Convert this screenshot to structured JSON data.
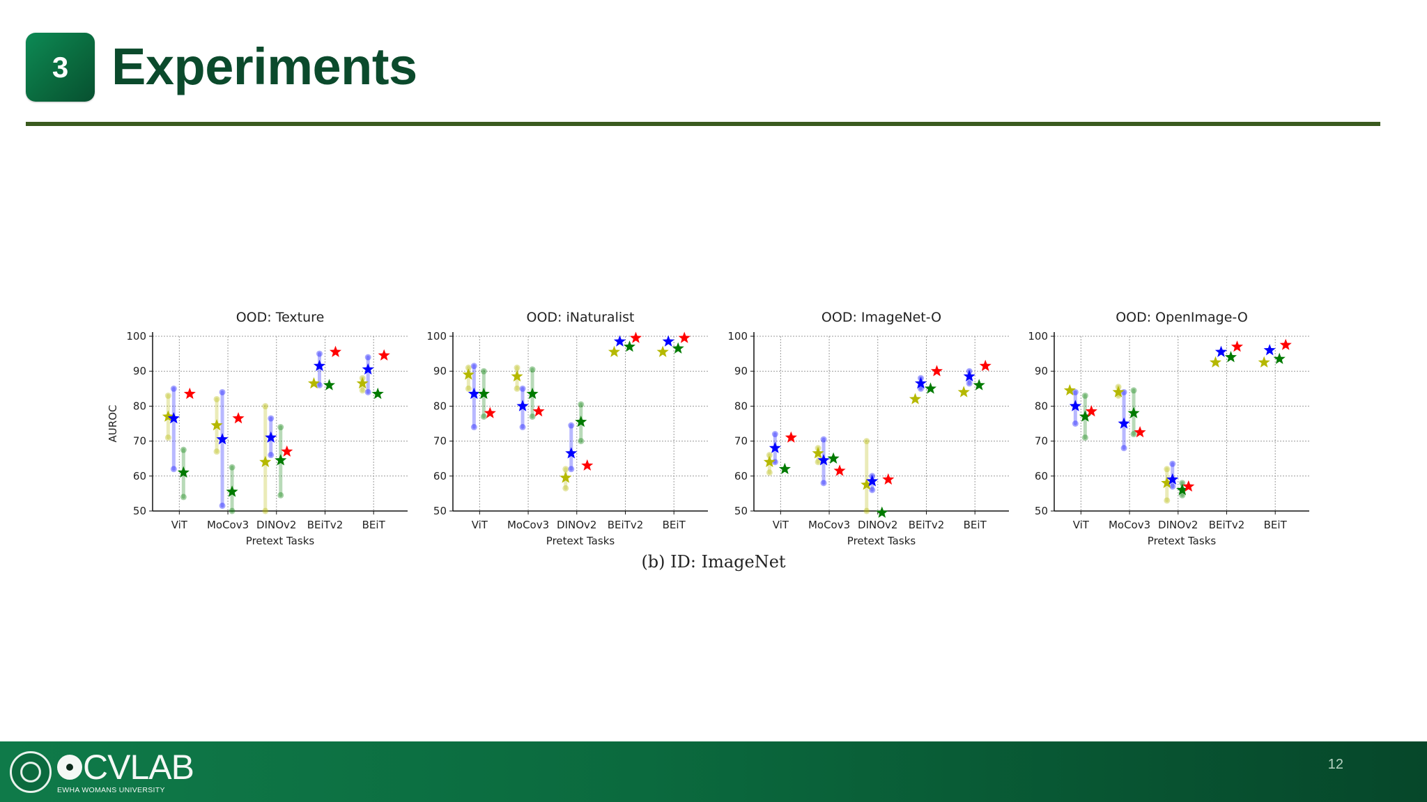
{
  "slide": {
    "section_number": "3",
    "title": "Experiments",
    "page_number": "12",
    "caption": "(b) ID: ImageNet",
    "logo_text": "CVLAB",
    "logo_subtext": "EWHA WOMANS UNIVERSITY"
  },
  "colors": {
    "title": "#0b4a2c",
    "rule": "#3a5a1e",
    "footer": "#0b6a3e",
    "series": [
      "#0000ff",
      "#b5b800",
      "#007a00",
      "#ff0000"
    ]
  },
  "chart_data": [
    {
      "type": "scatter",
      "title": "OOD: Texture",
      "xlabel": "Pretext Tasks",
      "ylabel": "AUROC",
      "categories": [
        "ViT",
        "MoCov3",
        "DINOv2",
        "BEiTv2",
        "BEiT"
      ],
      "ylim": [
        50,
        100
      ],
      "yticks": [
        50,
        60,
        70,
        80,
        90,
        100
      ],
      "grid": true,
      "stars": [
        {
          "cat": 0,
          "pos": 0,
          "y": 77,
          "color": "#b5b800"
        },
        {
          "cat": 0,
          "pos": 1,
          "y": 76.5,
          "color": "#0000ff"
        },
        {
          "cat": 0,
          "pos": 2,
          "y": 61,
          "color": "#007a00"
        },
        {
          "cat": 0,
          "pos": 3,
          "y": 83.5,
          "color": "#ff0000"
        },
        {
          "cat": 1,
          "pos": 0,
          "y": 74.5,
          "color": "#b5b800"
        },
        {
          "cat": 1,
          "pos": 1,
          "y": 70.5,
          "color": "#0000ff"
        },
        {
          "cat": 1,
          "pos": 2,
          "y": 55.5,
          "color": "#007a00"
        },
        {
          "cat": 1,
          "pos": 3,
          "y": 76.5,
          "color": "#ff0000"
        },
        {
          "cat": 2,
          "pos": 0,
          "y": 64,
          "color": "#b5b800"
        },
        {
          "cat": 2,
          "pos": 1,
          "y": 71,
          "color": "#0000ff"
        },
        {
          "cat": 2,
          "pos": 2,
          "y": 64.5,
          "color": "#007a00"
        },
        {
          "cat": 2,
          "pos": 3,
          "y": 67,
          "color": "#ff0000"
        },
        {
          "cat": 3,
          "pos": 0,
          "y": 86.5,
          "color": "#b5b800"
        },
        {
          "cat": 3,
          "pos": 1,
          "y": 91.5,
          "color": "#0000ff"
        },
        {
          "cat": 3,
          "pos": 2,
          "y": 86,
          "color": "#007a00"
        },
        {
          "cat": 3,
          "pos": 3,
          "y": 95.5,
          "color": "#ff0000"
        },
        {
          "cat": 4,
          "pos": 0,
          "y": 86.5,
          "color": "#b5b800"
        },
        {
          "cat": 4,
          "pos": 1,
          "y": 90.5,
          "color": "#0000ff"
        },
        {
          "cat": 4,
          "pos": 2,
          "y": 83.5,
          "color": "#007a00"
        },
        {
          "cat": 4,
          "pos": 3,
          "y": 94.5,
          "color": "#ff0000"
        }
      ],
      "ranges": [
        {
          "cat": 0,
          "pos": 0,
          "lo": 71,
          "hi": 83,
          "color": "#b5b800"
        },
        {
          "cat": 0,
          "pos": 1,
          "lo": 62,
          "hi": 85,
          "color": "#0000ff"
        },
        {
          "cat": 0,
          "pos": 2,
          "lo": 54,
          "hi": 67.5,
          "color": "#007a00"
        },
        {
          "cat": 1,
          "pos": 0,
          "lo": 67,
          "hi": 82,
          "color": "#b5b800"
        },
        {
          "cat": 1,
          "pos": 1,
          "lo": 51.5,
          "hi": 84,
          "color": "#0000ff"
        },
        {
          "cat": 1,
          "pos": 2,
          "lo": 50,
          "hi": 62.5,
          "color": "#007a00"
        },
        {
          "cat": 2,
          "pos": 0,
          "lo": 50,
          "hi": 80,
          "color": "#b5b800"
        },
        {
          "cat": 2,
          "pos": 1,
          "lo": 66,
          "hi": 76.5,
          "color": "#0000ff"
        },
        {
          "cat": 2,
          "pos": 2,
          "lo": 54.5,
          "hi": 74,
          "color": "#007a00"
        },
        {
          "cat": 3,
          "pos": 1,
          "lo": 86,
          "hi": 95,
          "color": "#0000ff"
        },
        {
          "cat": 4,
          "pos": 0,
          "lo": 84.5,
          "hi": 88,
          "color": "#b5b800"
        },
        {
          "cat": 4,
          "pos": 1,
          "lo": 84,
          "hi": 94,
          "color": "#0000ff"
        }
      ]
    },
    {
      "type": "scatter",
      "title": "OOD: iNaturalist",
      "xlabel": "Pretext Tasks",
      "ylabel": "",
      "categories": [
        "ViT",
        "MoCov3",
        "DINOv2",
        "BEiTv2",
        "BEiT"
      ],
      "ylim": [
        50,
        100
      ],
      "yticks": [
        50,
        60,
        70,
        80,
        90,
        100
      ],
      "grid": true,
      "stars": [
        {
          "cat": 0,
          "pos": 0,
          "y": 89,
          "color": "#b5b800"
        },
        {
          "cat": 0,
          "pos": 1,
          "y": 83.5,
          "color": "#0000ff"
        },
        {
          "cat": 0,
          "pos": 2,
          "y": 83.5,
          "color": "#007a00"
        },
        {
          "cat": 0,
          "pos": 3,
          "y": 78,
          "color": "#ff0000"
        },
        {
          "cat": 1,
          "pos": 0,
          "y": 88.5,
          "color": "#b5b800"
        },
        {
          "cat": 1,
          "pos": 1,
          "y": 80,
          "color": "#0000ff"
        },
        {
          "cat": 1,
          "pos": 2,
          "y": 83.5,
          "color": "#007a00"
        },
        {
          "cat": 1,
          "pos": 3,
          "y": 78.5,
          "color": "#ff0000"
        },
        {
          "cat": 2,
          "pos": 0,
          "y": 59.5,
          "color": "#b5b800"
        },
        {
          "cat": 2,
          "pos": 1,
          "y": 66.5,
          "color": "#0000ff"
        },
        {
          "cat": 2,
          "pos": 2,
          "y": 75.5,
          "color": "#007a00"
        },
        {
          "cat": 2,
          "pos": 3,
          "y": 63,
          "color": "#ff0000"
        },
        {
          "cat": 3,
          "pos": 0,
          "y": 95.5,
          "color": "#b5b800"
        },
        {
          "cat": 3,
          "pos": 1,
          "y": 98.5,
          "color": "#0000ff"
        },
        {
          "cat": 3,
          "pos": 2,
          "y": 97,
          "color": "#007a00"
        },
        {
          "cat": 3,
          "pos": 3,
          "y": 99.5,
          "color": "#ff0000"
        },
        {
          "cat": 4,
          "pos": 0,
          "y": 95.5,
          "color": "#b5b800"
        },
        {
          "cat": 4,
          "pos": 1,
          "y": 98.5,
          "color": "#0000ff"
        },
        {
          "cat": 4,
          "pos": 2,
          "y": 96.5,
          "color": "#007a00"
        },
        {
          "cat": 4,
          "pos": 3,
          "y": 99.5,
          "color": "#ff0000"
        }
      ],
      "ranges": [
        {
          "cat": 0,
          "pos": 0,
          "lo": 85,
          "hi": 91,
          "color": "#b5b800"
        },
        {
          "cat": 0,
          "pos": 1,
          "lo": 74,
          "hi": 91.5,
          "color": "#0000ff"
        },
        {
          "cat": 0,
          "pos": 2,
          "lo": 77,
          "hi": 90,
          "color": "#007a00"
        },
        {
          "cat": 1,
          "pos": 0,
          "lo": 85,
          "hi": 91,
          "color": "#b5b800"
        },
        {
          "cat": 1,
          "pos": 1,
          "lo": 74,
          "hi": 85,
          "color": "#0000ff"
        },
        {
          "cat": 1,
          "pos": 2,
          "lo": 77,
          "hi": 90.5,
          "color": "#007a00"
        },
        {
          "cat": 2,
          "pos": 0,
          "lo": 56.5,
          "hi": 62,
          "color": "#b5b800"
        },
        {
          "cat": 2,
          "pos": 1,
          "lo": 62,
          "hi": 74.5,
          "color": "#0000ff"
        },
        {
          "cat": 2,
          "pos": 2,
          "lo": 70,
          "hi": 80.5,
          "color": "#007a00"
        }
      ]
    },
    {
      "type": "scatter",
      "title": "OOD: ImageNet-O",
      "xlabel": "Pretext Tasks",
      "ylabel": "",
      "categories": [
        "ViT",
        "MoCov3",
        "DINOv2",
        "BEiTv2",
        "BEiT"
      ],
      "ylim": [
        50,
        100
      ],
      "yticks": [
        50,
        60,
        70,
        80,
        90,
        100
      ],
      "grid": true,
      "stars": [
        {
          "cat": 0,
          "pos": 0,
          "y": 64,
          "color": "#b5b800"
        },
        {
          "cat": 0,
          "pos": 1,
          "y": 68,
          "color": "#0000ff"
        },
        {
          "cat": 0,
          "pos": 2,
          "y": 62,
          "color": "#007a00"
        },
        {
          "cat": 0,
          "pos": 3,
          "y": 71,
          "color": "#ff0000"
        },
        {
          "cat": 1,
          "pos": 0,
          "y": 66.5,
          "color": "#b5b800"
        },
        {
          "cat": 1,
          "pos": 1,
          "y": 64.5,
          "color": "#0000ff"
        },
        {
          "cat": 1,
          "pos": 2,
          "y": 65,
          "color": "#007a00"
        },
        {
          "cat": 1,
          "pos": 3,
          "y": 61.5,
          "color": "#ff0000"
        },
        {
          "cat": 2,
          "pos": 0,
          "y": 57.5,
          "color": "#b5b800"
        },
        {
          "cat": 2,
          "pos": 1,
          "y": 58.5,
          "color": "#0000ff"
        },
        {
          "cat": 2,
          "pos": 2,
          "y": 49.5,
          "color": "#007a00"
        },
        {
          "cat": 2,
          "pos": 3,
          "y": 59,
          "color": "#ff0000"
        },
        {
          "cat": 3,
          "pos": 0,
          "y": 82,
          "color": "#b5b800"
        },
        {
          "cat": 3,
          "pos": 1,
          "y": 86.5,
          "color": "#0000ff"
        },
        {
          "cat": 3,
          "pos": 2,
          "y": 85,
          "color": "#007a00"
        },
        {
          "cat": 3,
          "pos": 3,
          "y": 90,
          "color": "#ff0000"
        },
        {
          "cat": 4,
          "pos": 0,
          "y": 84,
          "color": "#b5b800"
        },
        {
          "cat": 4,
          "pos": 1,
          "y": 88.5,
          "color": "#0000ff"
        },
        {
          "cat": 4,
          "pos": 2,
          "y": 86,
          "color": "#007a00"
        },
        {
          "cat": 4,
          "pos": 3,
          "y": 91.5,
          "color": "#ff0000"
        }
      ],
      "ranges": [
        {
          "cat": 0,
          "pos": 0,
          "lo": 61,
          "hi": 66,
          "color": "#b5b800"
        },
        {
          "cat": 0,
          "pos": 1,
          "lo": 64,
          "hi": 72,
          "color": "#0000ff"
        },
        {
          "cat": 1,
          "pos": 0,
          "lo": 64,
          "hi": 68,
          "color": "#b5b800"
        },
        {
          "cat": 1,
          "pos": 1,
          "lo": 58,
          "hi": 70.5,
          "color": "#0000ff"
        },
        {
          "cat": 2,
          "pos": 0,
          "lo": 50,
          "hi": 70,
          "color": "#b5b800"
        },
        {
          "cat": 2,
          "pos": 1,
          "lo": 56,
          "hi": 60,
          "color": "#0000ff"
        },
        {
          "cat": 3,
          "pos": 1,
          "lo": 85,
          "hi": 88,
          "color": "#0000ff"
        },
        {
          "cat": 4,
          "pos": 1,
          "lo": 86.5,
          "hi": 90,
          "color": "#0000ff"
        }
      ]
    },
    {
      "type": "scatter",
      "title": "OOD: OpenImage-O",
      "xlabel": "Pretext Tasks",
      "ylabel": "",
      "categories": [
        "ViT",
        "MoCov3",
        "DINOv2",
        "BEiTv2",
        "BEiT"
      ],
      "ylim": [
        50,
        100
      ],
      "yticks": [
        50,
        60,
        70,
        80,
        90,
        100
      ],
      "grid": true,
      "stars": [
        {
          "cat": 0,
          "pos": 0,
          "y": 84.5,
          "color": "#b5b800"
        },
        {
          "cat": 0,
          "pos": 1,
          "y": 80,
          "color": "#0000ff"
        },
        {
          "cat": 0,
          "pos": 2,
          "y": 77,
          "color": "#007a00"
        },
        {
          "cat": 0,
          "pos": 3,
          "y": 78.5,
          "color": "#ff0000"
        },
        {
          "cat": 1,
          "pos": 0,
          "y": 84,
          "color": "#b5b800"
        },
        {
          "cat": 1,
          "pos": 1,
          "y": 75,
          "color": "#0000ff"
        },
        {
          "cat": 1,
          "pos": 2,
          "y": 78,
          "color": "#007a00"
        },
        {
          "cat": 1,
          "pos": 3,
          "y": 72.5,
          "color": "#ff0000"
        },
        {
          "cat": 2,
          "pos": 0,
          "y": 58,
          "color": "#b5b800"
        },
        {
          "cat": 2,
          "pos": 1,
          "y": 59,
          "color": "#0000ff"
        },
        {
          "cat": 2,
          "pos": 2,
          "y": 56,
          "color": "#007a00"
        },
        {
          "cat": 2,
          "pos": 3,
          "y": 57,
          "color": "#ff0000"
        },
        {
          "cat": 3,
          "pos": 0,
          "y": 92.5,
          "color": "#b5b800"
        },
        {
          "cat": 3,
          "pos": 1,
          "y": 95.5,
          "color": "#0000ff"
        },
        {
          "cat": 3,
          "pos": 2,
          "y": 94,
          "color": "#007a00"
        },
        {
          "cat": 3,
          "pos": 3,
          "y": 97,
          "color": "#ff0000"
        },
        {
          "cat": 4,
          "pos": 0,
          "y": 92.5,
          "color": "#b5b800"
        },
        {
          "cat": 4,
          "pos": 1,
          "y": 96,
          "color": "#0000ff"
        },
        {
          "cat": 4,
          "pos": 2,
          "y": 93.5,
          "color": "#007a00"
        },
        {
          "cat": 4,
          "pos": 3,
          "y": 97.5,
          "color": "#ff0000"
        }
      ],
      "ranges": [
        {
          "cat": 0,
          "pos": 1,
          "lo": 75,
          "hi": 84,
          "color": "#0000ff"
        },
        {
          "cat": 0,
          "pos": 2,
          "lo": 71,
          "hi": 83,
          "color": "#007a00"
        },
        {
          "cat": 1,
          "pos": 0,
          "lo": 83,
          "hi": 85.5,
          "color": "#b5b800"
        },
        {
          "cat": 1,
          "pos": 1,
          "lo": 68,
          "hi": 84,
          "color": "#0000ff"
        },
        {
          "cat": 1,
          "pos": 2,
          "lo": 72,
          "hi": 84.5,
          "color": "#007a00"
        },
        {
          "cat": 2,
          "pos": 0,
          "lo": 53,
          "hi": 62,
          "color": "#b5b800"
        },
        {
          "cat": 2,
          "pos": 1,
          "lo": 57,
          "hi": 63.5,
          "color": "#0000ff"
        },
        {
          "cat": 2,
          "pos": 2,
          "lo": 54.5,
          "hi": 58,
          "color": "#007a00"
        }
      ]
    }
  ]
}
